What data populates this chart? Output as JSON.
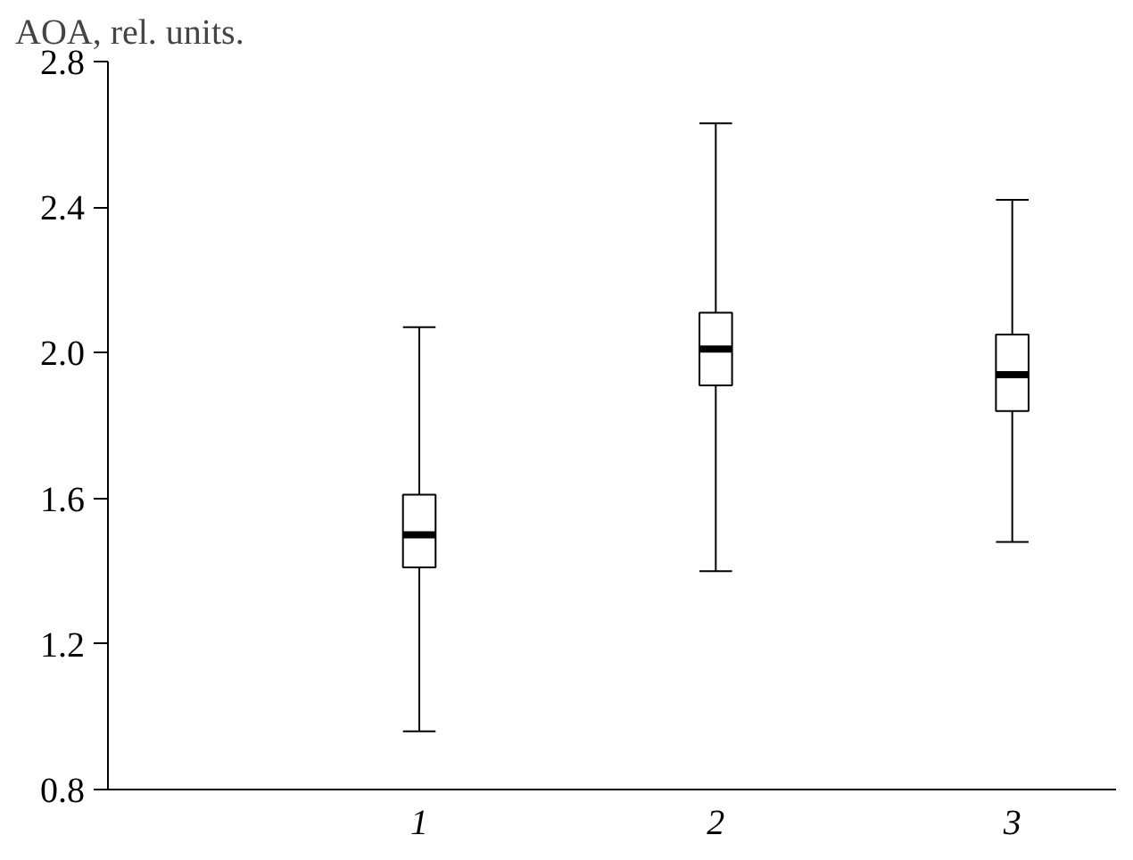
{
  "chart_data": {
    "type": "box",
    "ylabel": "AOA, rel. units.",
    "categories": [
      "1",
      "2",
      "3"
    ],
    "boxes": [
      {
        "low": 0.96,
        "q1": 1.41,
        "median": 1.5,
        "q3": 1.61,
        "high": 2.07
      },
      {
        "low": 1.4,
        "q1": 1.91,
        "median": 2.01,
        "q3": 2.11,
        "high": 2.63
      },
      {
        "low": 1.48,
        "q1": 1.84,
        "median": 1.94,
        "q3": 2.05,
        "high": 2.42
      }
    ],
    "ylim": [
      0.8,
      2.8
    ],
    "yticks": [
      {
        "value": 0.8,
        "label": "0.8"
      },
      {
        "value": 1.2,
        "label": "1.2"
      },
      {
        "value": 1.6,
        "label": "1.6"
      },
      {
        "value": 2.0,
        "label": "2.0"
      },
      {
        "value": 2.4,
        "label": "2.4"
      },
      {
        "value": 2.8,
        "label": "2.8"
      }
    ],
    "grid": false
  }
}
